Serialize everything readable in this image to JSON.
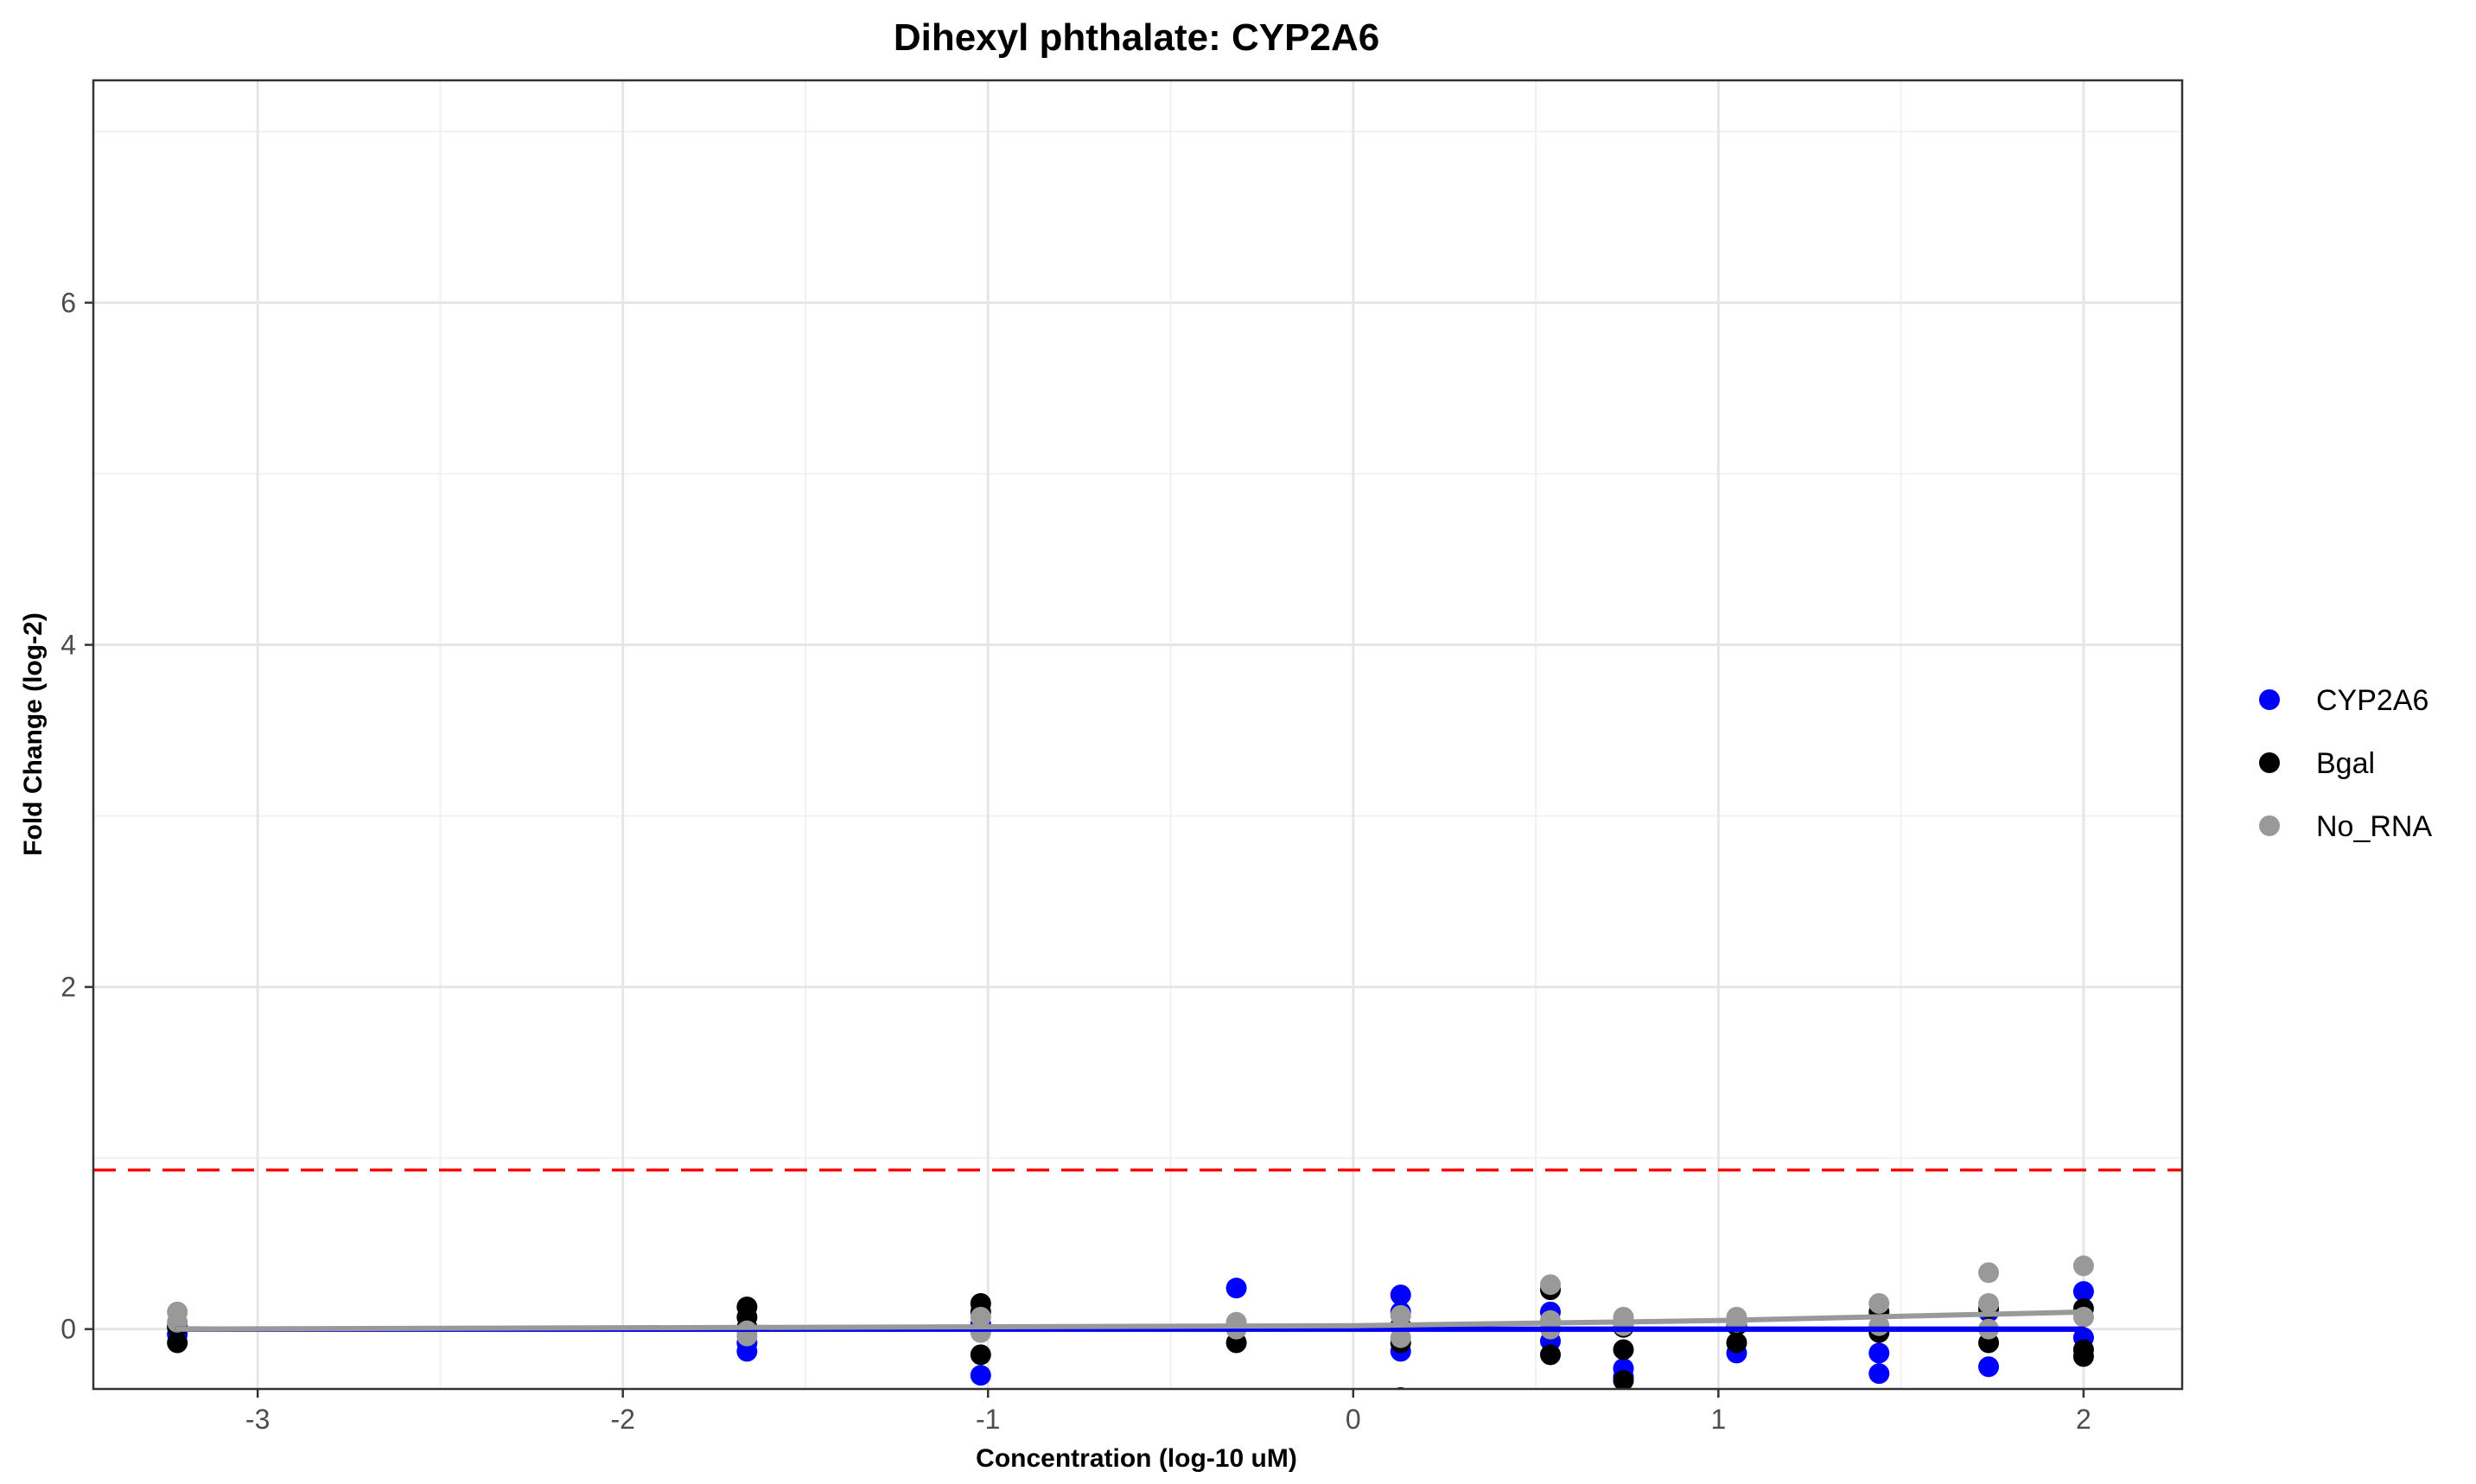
{
  "chart_data": {
    "type": "scatter",
    "title": "Dihexyl phthalate: CYP2A6",
    "xlabel": "Concentration (log-10 uM)",
    "ylabel": "Fold Change (log-2)",
    "xlim": [
      -3.45,
      2.27
    ],
    "ylim": [
      -0.35,
      7.3
    ],
    "x_ticks": [
      -3,
      -2,
      -1,
      0,
      1,
      2
    ],
    "y_ticks": [
      0,
      2,
      4,
      6
    ],
    "grid": true,
    "legend_position": "right",
    "threshold": {
      "y": 0.93,
      "color": "#ff0000",
      "style": "dashed"
    },
    "series": [
      {
        "name": "CYP2A6",
        "color": "#0000ff",
        "points": [
          [
            -3.22,
            0.02
          ],
          [
            -3.22,
            -0.03
          ],
          [
            -1.66,
            -0.08
          ],
          [
            -1.66,
            -0.13
          ],
          [
            -1.02,
            0.03
          ],
          [
            -1.02,
            -0.27
          ],
          [
            -0.32,
            0.24
          ],
          [
            -0.32,
            0.02
          ],
          [
            0.13,
            0.2
          ],
          [
            0.13,
            0.1
          ],
          [
            0.13,
            -0.13
          ],
          [
            0.54,
            0.1
          ],
          [
            0.54,
            -0.07
          ],
          [
            0.74,
            -0.23
          ],
          [
            0.74,
            -0.28
          ],
          [
            1.05,
            0.03
          ],
          [
            1.05,
            -0.14
          ],
          [
            1.44,
            -0.14
          ],
          [
            1.44,
            -0.26
          ],
          [
            1.74,
            0.1
          ],
          [
            1.74,
            -0.22
          ],
          [
            2.0,
            0.22
          ],
          [
            2.0,
            -0.05
          ]
        ],
        "fit": [
          [
            -3.22,
            0.0
          ],
          [
            2.0,
            0.0
          ]
        ]
      },
      {
        "name": "Bgal",
        "color": "#000000",
        "points": [
          [
            -3.22,
            -0.08
          ],
          [
            -3.22,
            0.01
          ],
          [
            -1.66,
            0.13
          ],
          [
            -1.66,
            0.07
          ],
          [
            -1.66,
            0.01
          ],
          [
            -1.02,
            0.15
          ],
          [
            -1.02,
            0.1
          ],
          [
            -1.02,
            -0.15
          ],
          [
            -0.32,
            -0.08
          ],
          [
            -0.32,
            0.02
          ],
          [
            0.13,
            -0.4
          ],
          [
            0.13,
            0.02
          ],
          [
            0.13,
            -0.08
          ],
          [
            0.54,
            0.23
          ],
          [
            0.54,
            -0.15
          ],
          [
            0.74,
            -0.12
          ],
          [
            0.74,
            -0.3
          ],
          [
            0.74,
            0.01
          ],
          [
            1.05,
            -0.08
          ],
          [
            1.05,
            0.02
          ],
          [
            1.44,
            0.1
          ],
          [
            1.44,
            -0.02
          ],
          [
            1.74,
            -0.08
          ],
          [
            1.74,
            0.12
          ],
          [
            2.0,
            -0.12
          ],
          [
            2.0,
            -0.16
          ],
          [
            2.0,
            0.12
          ]
        ],
        "fit": [
          [
            -3.22,
            0.0
          ],
          [
            2.0,
            0.0
          ]
        ]
      },
      {
        "name": "No_RNA",
        "color": "#999999",
        "points": [
          [
            -3.22,
            0.1
          ],
          [
            -3.22,
            0.04
          ],
          [
            -1.66,
            -0.01
          ],
          [
            -1.66,
            -0.04
          ],
          [
            -1.02,
            0.07
          ],
          [
            -1.02,
            -0.02
          ],
          [
            -0.32,
            0.04
          ],
          [
            -0.32,
            0.0
          ],
          [
            0.13,
            0.08
          ],
          [
            0.13,
            -0.05
          ],
          [
            0.54,
            0.26
          ],
          [
            0.54,
            0.05
          ],
          [
            0.54,
            0.0
          ],
          [
            0.74,
            0.07
          ],
          [
            0.74,
            0.02
          ],
          [
            1.05,
            0.07
          ],
          [
            1.05,
            0.04
          ],
          [
            1.44,
            0.15
          ],
          [
            1.44,
            0.02
          ],
          [
            1.74,
            0.33
          ],
          [
            1.74,
            0.15
          ],
          [
            1.74,
            0.0
          ],
          [
            2.0,
            0.37
          ],
          [
            2.0,
            0.07
          ]
        ],
        "fit": [
          [
            -3.22,
            0.0
          ],
          [
            0.0,
            0.02
          ],
          [
            1.0,
            0.05
          ],
          [
            2.0,
            0.1
          ]
        ]
      }
    ]
  }
}
